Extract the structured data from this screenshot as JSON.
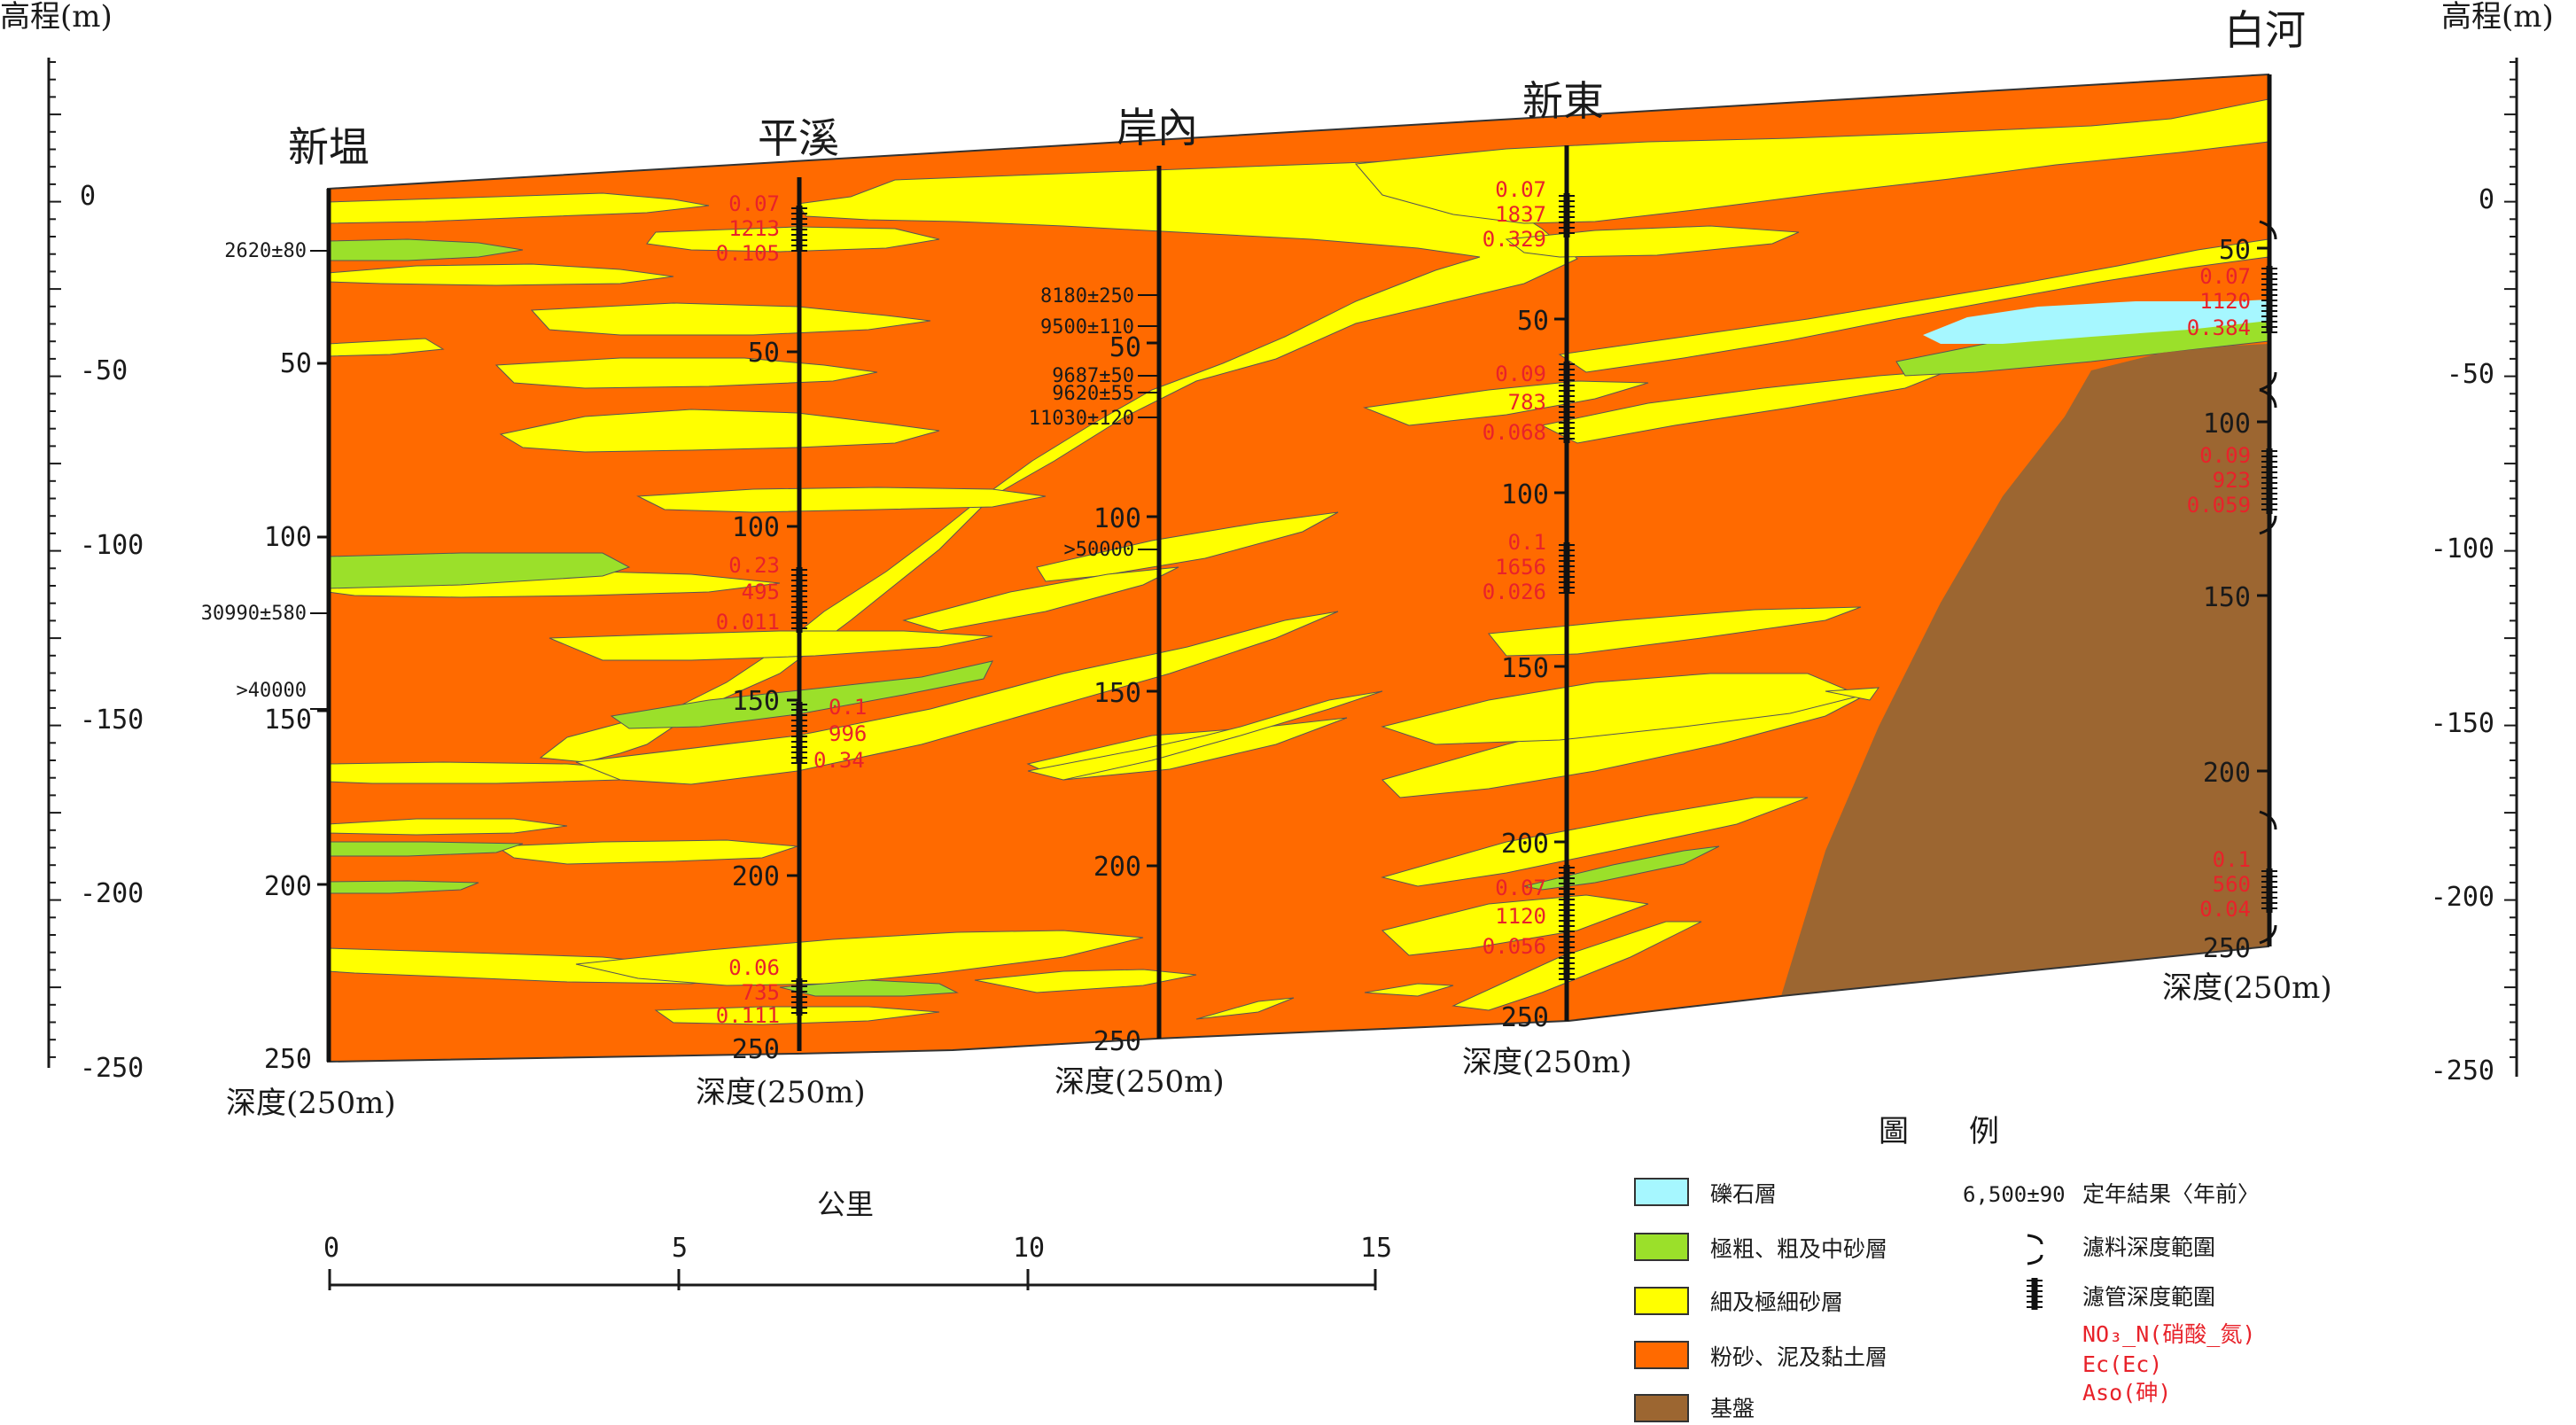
{
  "colors": {
    "gravel": "#a6f7ff",
    "coarse_sand": "#9be02a",
    "fine_sand": "#ffff00",
    "silt_clay": "#ff6a00",
    "bedrock": "#9c6631",
    "water": "#e8222a",
    "ink": "#1a1a1a"
  },
  "elevation_axis": {
    "title": "高程(m)",
    "ticks": [
      "0",
      "-50",
      "-100",
      "-150",
      "-200",
      "-250"
    ]
  },
  "wells": [
    {
      "name": "新塭",
      "depth_label": "深度(250m)",
      "depth_ticks": [
        "50",
        "100",
        "150",
        "200",
        "250"
      ],
      "dates": [
        "2620±80",
        "30990±580",
        ">40000"
      ]
    },
    {
      "name": "平溪",
      "depth_label": "深度(250m)",
      "depth_ticks": [
        "50",
        "100",
        "150",
        "200",
        "250"
      ],
      "water": [
        {
          "no3": "0.07",
          "ec": "1213",
          "as": "0.105"
        },
        {
          "no3": "0.23",
          "ec": "495",
          "as": "0.011"
        },
        {
          "no3": "0.1",
          "ec": "996",
          "as": "0.34"
        },
        {
          "no3": "0.06",
          "ec": "735",
          "as": "0.111"
        }
      ]
    },
    {
      "name": "岸內",
      "depth_label": "深度(250m)",
      "depth_ticks": [
        "50",
        "100",
        "150",
        "200",
        "250"
      ],
      "dates": [
        "8180±250",
        "9500±110",
        "9687±50",
        "9620±55",
        "11030±120",
        ">50000"
      ]
    },
    {
      "name": "新東",
      "depth_label": "深度(250m)",
      "depth_ticks": [
        "50",
        "100",
        "150",
        "200",
        "250"
      ],
      "water": [
        {
          "no3": "0.07",
          "ec": "1837",
          "as": "0.329"
        },
        {
          "no3": "0.09",
          "ec": "783",
          "as": "0.068"
        },
        {
          "no3": "0.1",
          "ec": "1656",
          "as": "0.026"
        },
        {
          "no3": "0.07",
          "ec": "1120",
          "as": "0.056"
        }
      ]
    },
    {
      "name": "白河",
      "depth_label": "深度(250m)",
      "depth_ticks": [
        "50",
        "100",
        "150",
        "200",
        "250"
      ],
      "water": [
        {
          "no3": "0.07",
          "ec": "1120",
          "as": "0.384"
        },
        {
          "no3": "0.09",
          "ec": "923",
          "as": "0.059"
        },
        {
          "no3": "0.1",
          "ec": "560",
          "as": "0.04"
        }
      ]
    }
  ],
  "scale_bar": {
    "title": "公里",
    "ticks": [
      "0",
      "5",
      "10",
      "15"
    ]
  },
  "legend": {
    "title": "圖　　例",
    "items": [
      {
        "label": "礫石層",
        "color": "#a6f7ff"
      },
      {
        "label": "極粗、粗及中砂層",
        "color": "#9be02a"
      },
      {
        "label": "細及極細砂層",
        "color": "#ffff00"
      },
      {
        "label": "粉砂、泥及黏土層",
        "color": "#ff6a00"
      },
      {
        "label": "基盤",
        "color": "#9c6631"
      }
    ],
    "symbols": [
      {
        "sample": "6,500±90",
        "label": "定年結果〈年前〉"
      },
      {
        "label": "濾料深度範圍"
      },
      {
        "label": "濾管深度範圍"
      }
    ],
    "red_lines": [
      "NO₃_N(硝酸_氮)",
      "Ec(Ec)",
      "Aso(砷)"
    ]
  }
}
